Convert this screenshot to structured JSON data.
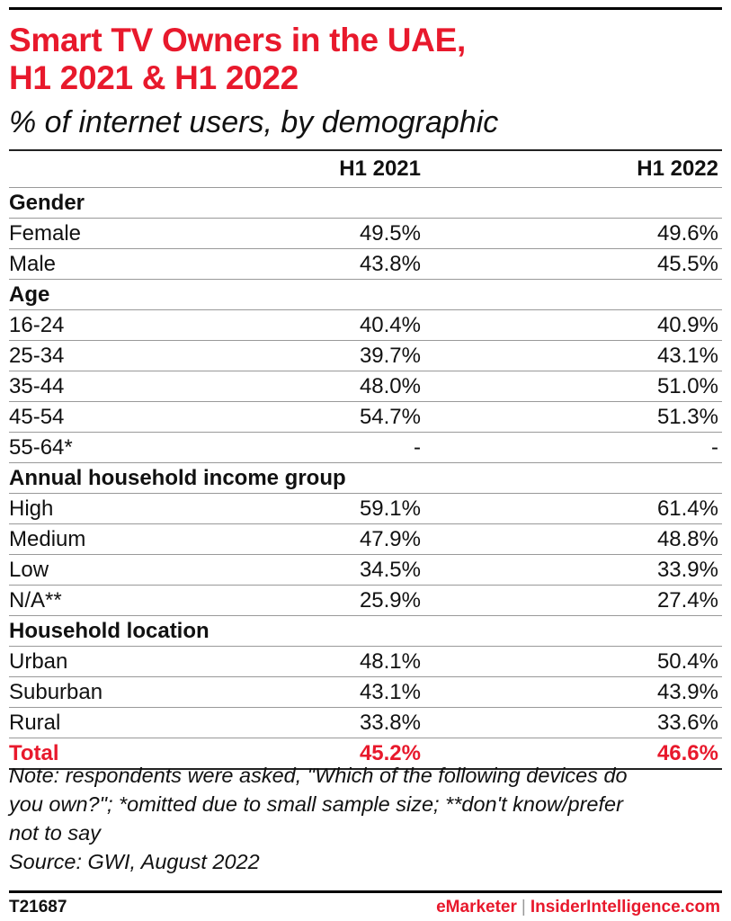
{
  "title_line1": "Smart TV Owners in the UAE,",
  "title_line2": "H1 2021 & H1 2022",
  "subtitle": "% of internet users, by demographic",
  "chart_data": {
    "type": "table",
    "columns": [
      "H1 2021",
      "H1 2022"
    ],
    "rows": [
      {
        "kind": "section",
        "label": "Gender"
      },
      {
        "kind": "data",
        "label": "Female",
        "v1": "49.5%",
        "v2": "49.6%"
      },
      {
        "kind": "data",
        "label": "Male",
        "v1": "43.8%",
        "v2": "45.5%"
      },
      {
        "kind": "section",
        "label": "Age"
      },
      {
        "kind": "data",
        "label": "16-24",
        "v1": "40.4%",
        "v2": "40.9%"
      },
      {
        "kind": "data",
        "label": "25-34",
        "v1": "39.7%",
        "v2": "43.1%"
      },
      {
        "kind": "data",
        "label": "35-44",
        "v1": "48.0%",
        "v2": "51.0%"
      },
      {
        "kind": "data",
        "label": "45-54",
        "v1": "54.7%",
        "v2": "51.3%"
      },
      {
        "kind": "data",
        "label": "55-64*",
        "v1": "-",
        "v2": "-"
      },
      {
        "kind": "section",
        "label": "Annual household income group"
      },
      {
        "kind": "data",
        "label": "High",
        "v1": "59.1%",
        "v2": "61.4%"
      },
      {
        "kind": "data",
        "label": "Medium",
        "v1": "47.9%",
        "v2": "48.8%"
      },
      {
        "kind": "data",
        "label": "Low",
        "v1": "34.5%",
        "v2": "33.9%"
      },
      {
        "kind": "data",
        "label": "N/A**",
        "v1": "25.9%",
        "v2": "27.4%"
      },
      {
        "kind": "section",
        "label": "Household location"
      },
      {
        "kind": "data",
        "label": "Urban",
        "v1": "48.1%",
        "v2": "50.4%"
      },
      {
        "kind": "data",
        "label": "Suburban",
        "v1": "43.1%",
        "v2": "43.9%"
      },
      {
        "kind": "data",
        "label": "Rural",
        "v1": "33.8%",
        "v2": "33.6%"
      },
      {
        "kind": "total",
        "label": "Total",
        "v1": "45.2%",
        "v2": "46.6%"
      }
    ]
  },
  "notes": {
    "line1": "Note: respondents were asked, \"Which of the following devices do",
    "line2": "you own?\"; *omitted due to small sample size; **don't know/prefer",
    "line3": "not to say",
    "source": "Source: GWI, August 2022"
  },
  "footer": {
    "chart_id": "T21687",
    "brand_a": "eMarketer",
    "separator": "|",
    "brand_b": "InsiderIntelligence.com"
  },
  "colors": {
    "accent": "#e8192c"
  }
}
